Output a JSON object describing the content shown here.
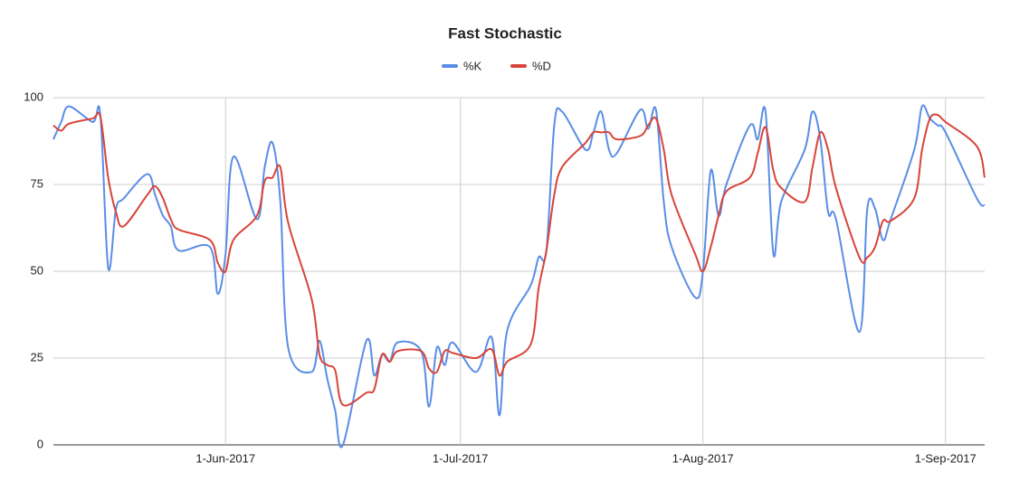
{
  "chart_data": {
    "type": "line",
    "title": "Fast Stochastic",
    "x": [
      "2017-05-10",
      "2017-05-11",
      "2017-05-12",
      "2017-05-15",
      "2017-05-16",
      "2017-05-17",
      "2017-05-18",
      "2017-05-19",
      "2017-05-22",
      "2017-05-23",
      "2017-05-24",
      "2017-05-25",
      "2017-05-26",
      "2017-05-30",
      "2017-05-31",
      "2017-06-01",
      "2017-06-02",
      "2017-06-05",
      "2017-06-06",
      "2017-06-07",
      "2017-06-08",
      "2017-06-09",
      "2017-06-12",
      "2017-06-13",
      "2017-06-14",
      "2017-06-15",
      "2017-06-16",
      "2017-06-19",
      "2017-06-20",
      "2017-06-21",
      "2017-06-22",
      "2017-06-23",
      "2017-06-26",
      "2017-06-27",
      "2017-06-28",
      "2017-06-29",
      "2017-06-30",
      "2017-07-03",
      "2017-07-05",
      "2017-07-06",
      "2017-07-07",
      "2017-07-10",
      "2017-07-11",
      "2017-07-12",
      "2017-07-13",
      "2017-07-14",
      "2017-07-17",
      "2017-07-18",
      "2017-07-19",
      "2017-07-20",
      "2017-07-21",
      "2017-07-24",
      "2017-07-25",
      "2017-07-26",
      "2017-07-27",
      "2017-07-28",
      "2017-07-31",
      "2017-08-01",
      "2017-08-02",
      "2017-08-03",
      "2017-08-04",
      "2017-08-07",
      "2017-08-08",
      "2017-08-09",
      "2017-08-10",
      "2017-08-11",
      "2017-08-14",
      "2017-08-15",
      "2017-08-16",
      "2017-08-17",
      "2017-08-18",
      "2017-08-21",
      "2017-08-22",
      "2017-08-23",
      "2017-08-24",
      "2017-08-25",
      "2017-08-28",
      "2017-08-29",
      "2017-08-30",
      "2017-08-31",
      "2017-09-01",
      "2017-09-05",
      "2017-09-06"
    ],
    "series": [
      {
        "name": "%K",
        "color": "#5a8de6",
        "values": [
          88,
          93,
          97.5,
          93,
          95,
          51,
          68,
          71,
          78,
          72,
          66,
          63,
          56,
          57,
          43.5,
          55,
          83,
          65,
          80,
          87,
          70,
          28,
          21,
          30,
          19,
          10,
          0,
          30,
          20,
          26,
          24,
          29.5,
          27,
          11,
          28,
          23,
          29.5,
          21,
          31,
          8.5,
          33,
          46,
          54,
          56,
          92,
          96,
          85,
          90,
          96,
          85,
          84,
          96.5,
          91,
          96.5,
          70,
          57,
          42.5,
          50,
          79,
          66,
          75,
          92,
          88,
          96,
          55,
          70,
          85,
          96,
          88,
          67,
          65,
          32.5,
          68,
          68,
          59,
          65,
          85,
          97.5,
          94,
          92,
          90,
          71,
          69
        ]
      },
      {
        "name": "%D",
        "color": "#d8443a",
        "values": [
          92,
          90.5,
          92.5,
          94,
          94.5,
          77,
          67,
          63,
          72,
          74.5,
          71,
          65,
          62,
          59,
          52.5,
          50,
          59,
          66,
          76,
          77,
          80,
          64,
          42,
          26,
          23,
          21.5,
          11.5,
          15,
          16,
          26,
          24,
          27,
          27,
          22,
          21,
          27,
          26.5,
          25,
          27.5,
          20,
          24,
          29,
          45,
          56,
          72,
          80,
          87,
          90,
          90,
          90,
          88,
          89,
          92,
          94,
          85,
          72,
          55,
          50,
          57,
          66,
          73,
          77,
          84,
          91.5,
          79,
          74,
          70,
          80,
          90,
          85,
          74,
          54,
          54,
          57,
          64.5,
          64.5,
          71,
          85,
          94,
          95,
          93,
          86,
          77
        ]
      }
    ],
    "xlim": [
      "2017-05-10",
      "2017-09-06"
    ],
    "xticks": [
      {
        "value": "2017-06-01",
        "label": "1-Jun-2017"
      },
      {
        "value": "2017-07-01",
        "label": "1-Jul-2017"
      },
      {
        "value": "2017-08-01",
        "label": "1-Aug-2017"
      },
      {
        "value": "2017-09-01",
        "label": "1-Sep-2017"
      }
    ],
    "ylim": [
      0,
      100
    ],
    "yticks": [
      0,
      25,
      50,
      75,
      100
    ],
    "grid": true,
    "legend": "top"
  }
}
